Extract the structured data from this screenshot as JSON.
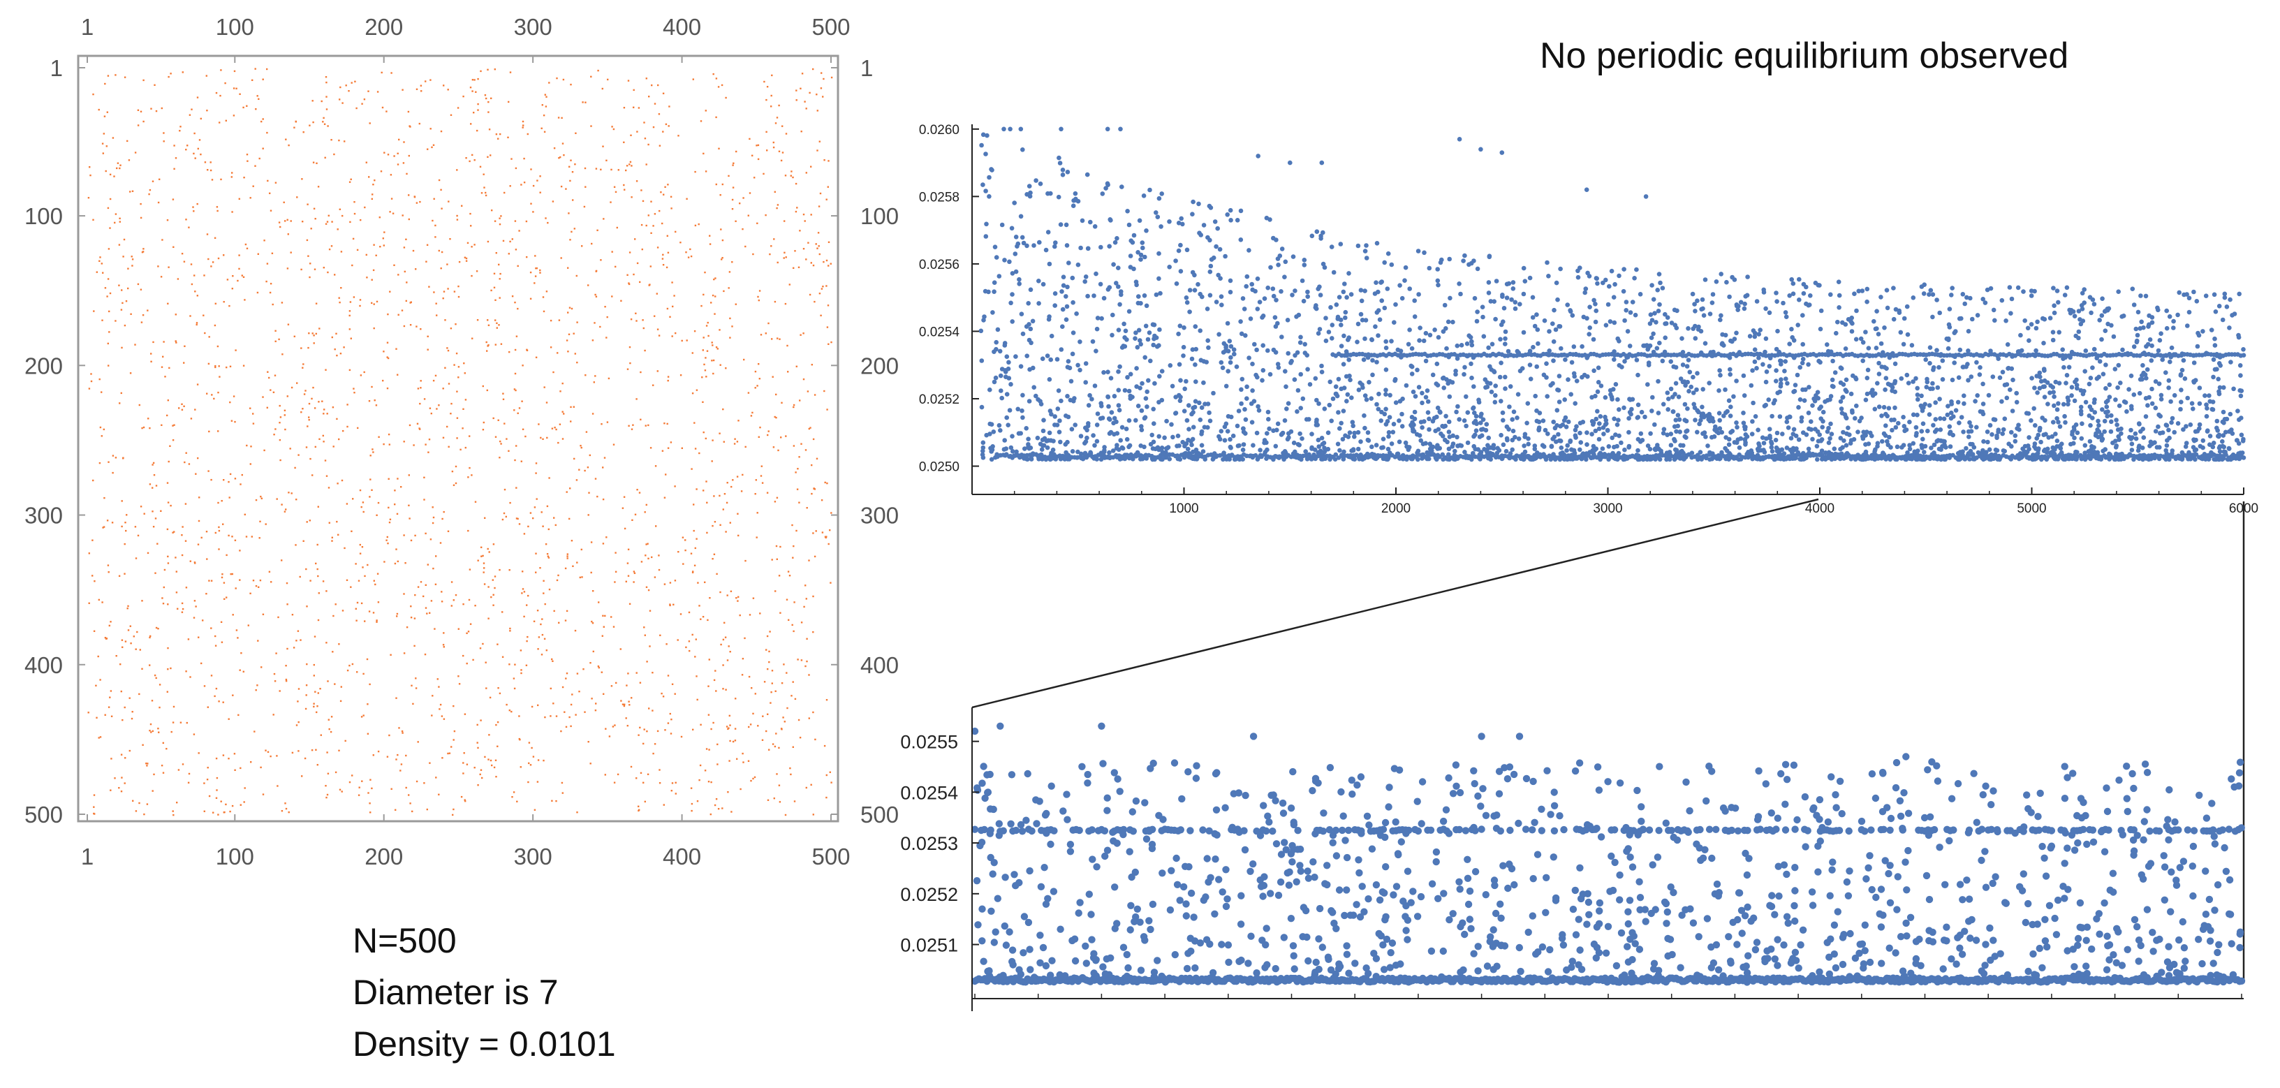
{
  "headline": "No periodic equilibrium observed",
  "info": {
    "n_text": "N=500",
    "diameter_text": "Diameter is 7",
    "density_text": "Density = 0.0101"
  },
  "colors": {
    "matrix_points": "#f47a36",
    "scatter_points": "#4f78b8",
    "frame": "#9a9a9a",
    "axis": "#222222"
  },
  "chart_data": [
    {
      "type": "scatter",
      "title": "",
      "description_kind": "matrix plot of a 500x500 adjacency matrix",
      "xlabel": "",
      "ylabel": "",
      "xlim": [
        1,
        500
      ],
      "ylim": [
        1,
        500
      ],
      "y_inverted": true,
      "x_ticks": [
        "1",
        "100",
        "200",
        "300",
        "400",
        "500"
      ],
      "y_ticks": [
        "1",
        "100",
        "200",
        "300",
        "400",
        "500"
      ],
      "tick_values": [
        1,
        100,
        200,
        300,
        400,
        500
      ],
      "point_count": 2525,
      "density": 0.0101,
      "distribution": "uniform random"
    },
    {
      "type": "scatter",
      "title": "",
      "xlabel": "",
      "ylabel": "",
      "xlim": [
        0,
        6000
      ],
      "ylim": [
        0.02497,
        0.02601
      ],
      "x_ticks": [
        "1000",
        "2000",
        "3000",
        "4000",
        "5000",
        "6000"
      ],
      "x_tick_values": [
        1000,
        2000,
        3000,
        4000,
        5000,
        6000
      ],
      "y_ticks": [
        "0.0250",
        "0.0252",
        "0.0254",
        "0.0256",
        "0.0258",
        "0.0260"
      ],
      "y_tick_values": [
        0.025,
        0.0252,
        0.0254,
        0.0256,
        0.0258,
        0.026
      ],
      "floor": 0.02502,
      "recurring_levels": [
        0.02503,
        0.02533
      ],
      "upper_envelope": [
        [
          0,
          0.026
        ],
        [
          1000,
          0.0258
        ],
        [
          2000,
          0.02565
        ],
        [
          3000,
          0.0256
        ],
        [
          4000,
          0.02555
        ],
        [
          5000,
          0.02553
        ],
        [
          6000,
          0.02553
        ]
      ],
      "outliers": [
        [
          150,
          0.026
        ],
        [
          180,
          0.026
        ],
        [
          230,
          0.026
        ],
        [
          420,
          0.026
        ],
        [
          640,
          0.026
        ],
        [
          700,
          0.026
        ],
        [
          1350,
          0.02592
        ],
        [
          1500,
          0.0259
        ],
        [
          1650,
          0.0259
        ],
        [
          2300,
          0.02597
        ],
        [
          2400,
          0.02594
        ],
        [
          2500,
          0.02593
        ],
        [
          2900,
          0.02582
        ],
        [
          3180,
          0.0258
        ]
      ]
    },
    {
      "type": "scatter",
      "title": "",
      "xlabel": "",
      "ylabel": "",
      "xlim": [
        4000,
        6000
      ],
      "ylim": [
        0.02501,
        0.02556
      ],
      "x_ticks": [],
      "y_ticks": [
        "0.0251",
        "0.0252",
        "0.0253",
        "0.0254",
        "0.0255"
      ],
      "y_tick_values": [
        0.0251,
        0.0252,
        0.0253,
        0.0254,
        0.0255
      ],
      "floor": 0.02502,
      "recurring_levels": [
        0.02503,
        0.025325
      ],
      "outliers": [
        [
          4000,
          0.02552
        ],
        [
          4040,
          0.02553
        ],
        [
          4200,
          0.02553
        ],
        [
          4440,
          0.02551
        ],
        [
          4800,
          0.02551
        ],
        [
          4860,
          0.02551
        ],
        [
          5470,
          0.02547
        ]
      ]
    }
  ]
}
